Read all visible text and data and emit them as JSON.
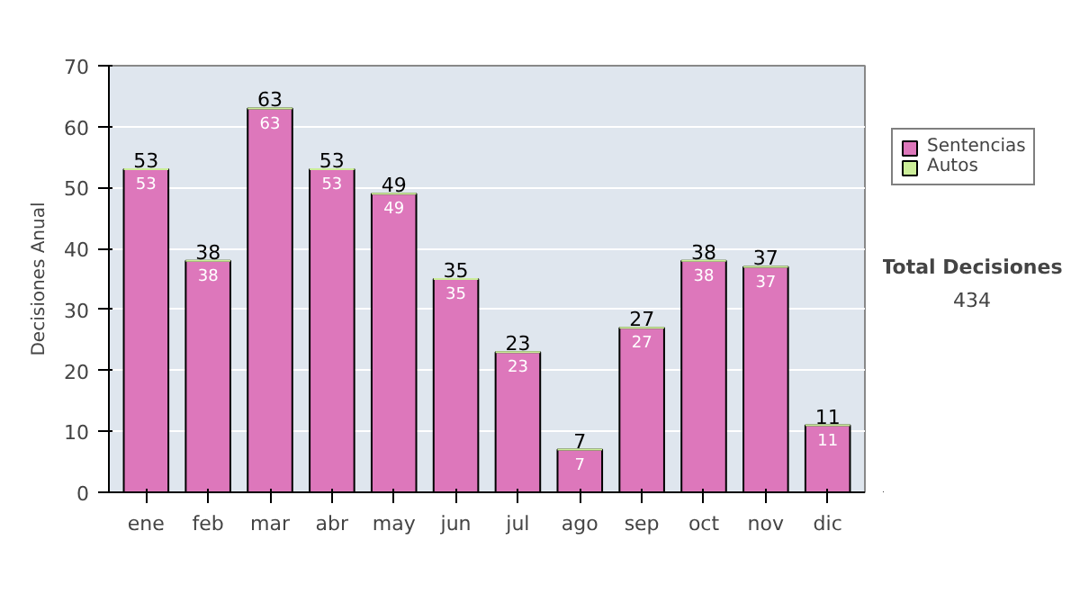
{
  "chart_data": {
    "type": "bar",
    "stacked": true,
    "ylabel": "Decisiones Anual",
    "categories": [
      "ene",
      "feb",
      "mar",
      "abr",
      "may",
      "jun",
      "jul",
      "ago",
      "sep",
      "oct",
      "nov",
      "dic"
    ],
    "series": [
      {
        "name": "Sentencias",
        "color": "#dd77bb",
        "values": [
          53,
          38,
          63,
          53,
          49,
          35,
          23,
          7,
          27,
          38,
          37,
          11
        ],
        "value_labels": [
          "53",
          "38",
          "63",
          "53",
          "49",
          "35",
          "23",
          "7",
          "27",
          "38",
          "37",
          "11"
        ]
      },
      {
        "name": "Autos",
        "color": "#ccee99",
        "values": [
          0,
          0,
          0,
          0,
          0,
          0,
          0,
          0,
          0,
          0,
          0,
          0
        ]
      }
    ],
    "totals": [
      "53",
      "38",
      "63",
      "53",
      "49",
      "35",
      "23",
      "7",
      "27",
      "38",
      "37",
      "11"
    ],
    "ylim": [
      0,
      70
    ],
    "yticks": [
      0,
      10,
      20,
      30,
      40,
      50,
      60,
      70
    ],
    "grid": "y",
    "legend": "right",
    "annotations": [
      "Total Decisiones",
      "434"
    ]
  }
}
